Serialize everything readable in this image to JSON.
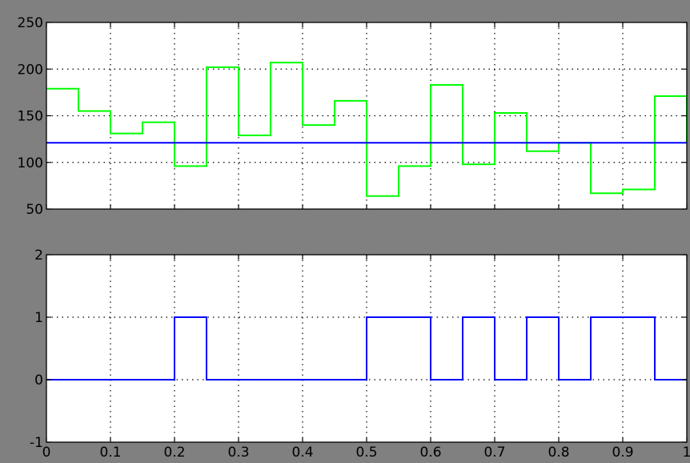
{
  "chart_data": [
    {
      "type": "line",
      "step": true,
      "xlim": [
        0,
        1
      ],
      "ylim": [
        50,
        250
      ],
      "xticks": [
        "0",
        "0.1",
        "0.2",
        "0.3",
        "0.4",
        "0.5",
        "0.6",
        "0.7",
        "0.8",
        "0.9",
        "1"
      ],
      "yticks": [
        "50",
        "100",
        "150",
        "200",
        "250"
      ],
      "grid": true,
      "series": [
        {
          "color": "#00ff00",
          "x": [
            0,
            0.05,
            0.1,
            0.15,
            0.2,
            0.25,
            0.3,
            0.35,
            0.4,
            0.45,
            0.5,
            0.55,
            0.6,
            0.65,
            0.7,
            0.75,
            0.8,
            0.85,
            0.9,
            0.95,
            1.0
          ],
          "y": [
            179,
            155,
            131,
            143,
            96,
            202,
            129,
            207,
            140,
            166,
            64,
            96,
            183,
            98,
            153,
            112,
            121,
            67,
            71,
            171,
            121
          ]
        },
        {
          "color": "#0000ff",
          "x": [
            0,
            1
          ],
          "y": [
            121,
            121
          ]
        }
      ]
    },
    {
      "type": "line",
      "step": true,
      "xlim": [
        0,
        1
      ],
      "ylim": [
        -1,
        2
      ],
      "xticks": [
        "0",
        "0.1",
        "0.2",
        "0.3",
        "0.4",
        "0.5",
        "0.6",
        "0.7",
        "0.8",
        "0.9",
        "1"
      ],
      "yticks": [
        "-1",
        "0",
        "1",
        "2"
      ],
      "grid": true,
      "series": [
        {
          "color": "#0000ff",
          "x": [
            0,
            0.05,
            0.1,
            0.15,
            0.2,
            0.25,
            0.3,
            0.35,
            0.4,
            0.45,
            0.5,
            0.55,
            0.6,
            0.65,
            0.7,
            0.75,
            0.8,
            0.85,
            0.9,
            0.95,
            1.0
          ],
          "y": [
            0,
            0,
            0,
            0,
            1,
            0,
            0,
            0,
            0,
            0,
            1,
            1,
            0,
            1,
            0,
            1,
            0,
            1,
            1,
            0,
            0
          ]
        }
      ]
    }
  ]
}
